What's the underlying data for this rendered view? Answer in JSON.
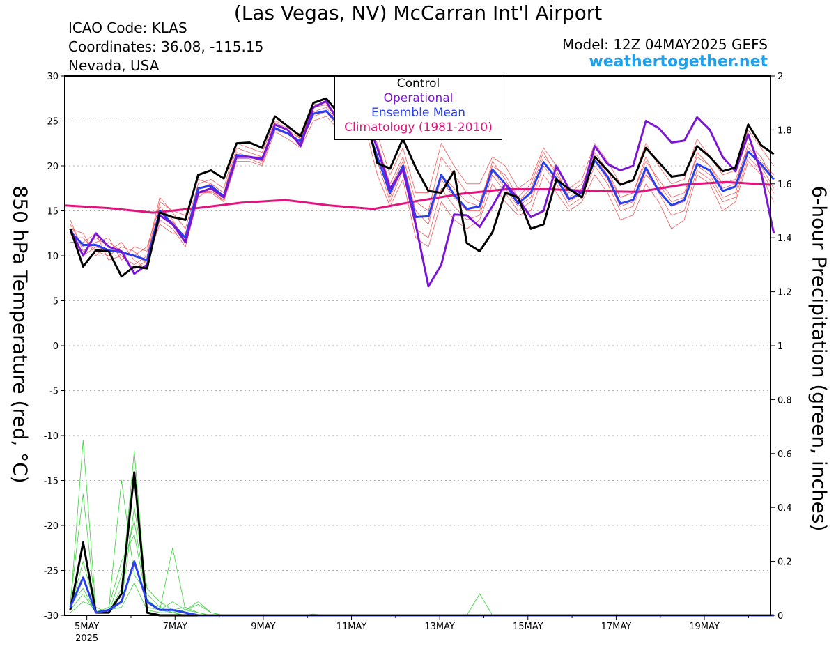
{
  "header": {
    "title": "(Las Vegas, NV) McCarran Int'l Airport",
    "icao": "ICAO Code: KLAS",
    "coordinates": "Coordinates: 36.08, -115.15",
    "region": "Nevada, USA",
    "model": "Model: 12Z 04MAY2025 GEFS",
    "site": "weathertogether.net"
  },
  "colors": {
    "control": "#000000",
    "operational": "#7b16d3",
    "ensemble_mean": "#2840f0",
    "climatology": "#e0147c",
    "members_temp": "#f25a5a",
    "members_precip": "#3ad23a",
    "site": "#1fa2ee"
  },
  "chart_data": {
    "type": "line",
    "title": "(Las Vegas, NV) McCarran Int'l Airport",
    "ylabel": "850 hPa Temperature (red, °C)",
    "y2label": "6-hour Precipitation (green, inches)",
    "ylim": [
      -30,
      30
    ],
    "y2lim": [
      0,
      2
    ],
    "yticks": [
      "30",
      "25",
      "20",
      "15",
      "10",
      "5",
      "0",
      "-5",
      "-10",
      "-15",
      "-20",
      "-25",
      "-30"
    ],
    "y2ticks": [
      "2",
      "1.8",
      "1.6",
      "1.4",
      "1.2",
      "1",
      "0.8",
      "0.6",
      "0.4",
      "0.2",
      "0"
    ],
    "xticks": [
      "5MAY",
      "7MAY",
      "9MAY",
      "11MAY",
      "13MAY",
      "15MAY",
      "17MAY",
      "19MAY"
    ],
    "xtick_year": "2025",
    "x_start_day": 4.5,
    "x_end_day": 20.5,
    "grid": "horizontal dotted",
    "legend": {
      "position": "top-center",
      "entries": [
        {
          "label": "Control",
          "color": "#000000"
        },
        {
          "label": "Operational",
          "color": "#7b16d3"
        },
        {
          "label": "Ensemble Mean",
          "color": "#2840f0"
        },
        {
          "label": "Climatology (1981-2010)",
          "color": "#e0147c"
        }
      ]
    },
    "series": [
      {
        "name": "Control",
        "axis": "left",
        "color": "#000000",
        "width": 3,
        "values": [
          13,
          8.8,
          10.6,
          10.5,
          7.7,
          8.8,
          8.6,
          14.8,
          14.3,
          14,
          19,
          19.5,
          18.6,
          22.5,
          22.6,
          22,
          25.5,
          24.4,
          23.3,
          27,
          27.5,
          25.8,
          26.5,
          26.2,
          20.3,
          19.7,
          23,
          19.8,
          17.2,
          17,
          19.4,
          11.4,
          10.5,
          12.6,
          17,
          16.5,
          13,
          13.5,
          18.5,
          17.4,
          16.5,
          21,
          19.5,
          17.9,
          18.4,
          22,
          20.4,
          18.8,
          19,
          22.2,
          21,
          19.4,
          19.8,
          24.6,
          22.3,
          21.3
        ]
      },
      {
        "name": "Operational",
        "axis": "left",
        "color": "#7b16d3",
        "width": 3,
        "values": [
          13,
          10,
          12.5,
          11,
          10.5,
          8,
          9,
          14.5,
          13.5,
          11.5,
          17,
          17.5,
          16.5,
          21,
          21,
          20.7,
          24.6,
          24,
          22.2,
          26.5,
          27.2,
          24.8,
          26,
          25.6,
          22,
          17.5,
          19.6,
          13.5,
          6.6,
          9,
          14.6,
          14.5,
          13.2,
          15.5,
          18,
          16.4,
          14.3,
          15,
          20,
          17.4,
          17,
          22.2,
          20.2,
          19.5,
          20,
          25,
          24.2,
          22.6,
          22.8,
          25.4,
          24,
          21,
          19.4,
          23.5,
          19.3,
          12.5
        ]
      },
      {
        "name": "Ensemble Mean",
        "axis": "left",
        "color": "#2840f0",
        "width": 3,
        "values": [
          12.7,
          11.2,
          11.2,
          10.6,
          10.4,
          10,
          9.5,
          15,
          13.5,
          12,
          17.5,
          17.8,
          16.6,
          21.2,
          21,
          20.8,
          24.2,
          23.6,
          22.7,
          25.8,
          26.1,
          24.6,
          25.5,
          25.2,
          21,
          17,
          20,
          14.3,
          14.4,
          19,
          16.8,
          15.2,
          15.5,
          19.6,
          18,
          15.8,
          17,
          20.4,
          18.6,
          16.3,
          17,
          20.6,
          18.8,
          15.8,
          16.2,
          19.8,
          17.2,
          15.6,
          16.2,
          20.2,
          19.5,
          17.2,
          17.7,
          21.6,
          20.2,
          18.5
        ]
      },
      {
        "name": "Climatology (1981-2010)",
        "axis": "left",
        "color": "#e0147c",
        "width": 3,
        "x": [
          4.5,
          5.5,
          6.5,
          7.5,
          8.5,
          9.5,
          10.5,
          11.5,
          12.5,
          13.5,
          14.5,
          15.5,
          16.5,
          17.5,
          18.5,
          19.5,
          20.5
        ],
        "values": [
          15.6,
          15.3,
          14.8,
          15.3,
          15.9,
          16.2,
          15.6,
          15.2,
          16.1,
          16.9,
          17.4,
          17.4,
          17.2,
          17.1,
          17.9,
          18.2,
          17.9
        ]
      },
      {
        "name": "Control precipitation",
        "axis": "right",
        "color": "#000000",
        "width": 3,
        "values": [
          0.02,
          0.27,
          0.01,
          0.01,
          0.08,
          0.53,
          0.01,
          0,
          0,
          0,
          0,
          0,
          0,
          0,
          0,
          0,
          0,
          0,
          0,
          0,
          0,
          0,
          0,
          0,
          0,
          0,
          0,
          0,
          0,
          0,
          0,
          0,
          0,
          0,
          0,
          0,
          0,
          0,
          0,
          0,
          0,
          0,
          0,
          0,
          0,
          0,
          0,
          0,
          0,
          0,
          0,
          0,
          0,
          0,
          0,
          0
        ]
      },
      {
        "name": "Ensemble mean precipitation",
        "axis": "right",
        "color": "#2840f0",
        "width": 3,
        "values": [
          0.03,
          0.14,
          0.01,
          0.02,
          0.05,
          0.2,
          0.05,
          0.02,
          0.02,
          0.01,
          0,
          0,
          0,
          0,
          0,
          0,
          0,
          0,
          0,
          0,
          0,
          0,
          0,
          0,
          0,
          0,
          0,
          0,
          0,
          0,
          0,
          0,
          0,
          0,
          0,
          0,
          0,
          0,
          0,
          0,
          0,
          0,
          0,
          0,
          0,
          0,
          0,
          0,
          0,
          0,
          0,
          0,
          0,
          0,
          0,
          0
        ]
      }
    ],
    "members_temp": [
      [
        13.5,
        11,
        12,
        11,
        10,
        9,
        10,
        16,
        15,
        14.5,
        18.5,
        18,
        17,
        22,
        21.5,
        21,
        24.8,
        24.2,
        23.5,
        26.8,
        27,
        25.4,
        26,
        25.5,
        22.5,
        18,
        21,
        16,
        15,
        21,
        19,
        17,
        16,
        20,
        19,
        16.5,
        18,
        21.5,
        19,
        17,
        18,
        21,
        19,
        16.5,
        17,
        21,
        18,
        16,
        16.5,
        21.5,
        20,
        18,
        18.5,
        22,
        20.5,
        19
      ],
      [
        12,
        12,
        10.5,
        10,
        11,
        10.5,
        9,
        14,
        13,
        11,
        16.5,
        17.5,
        16,
        20.5,
        20.5,
        20,
        23.8,
        23,
        22,
        25,
        25.5,
        24,
        25,
        24.6,
        19,
        15.5,
        18.5,
        12,
        11,
        16,
        14,
        13,
        14,
        18,
        16,
        14.5,
        15,
        19,
        17,
        15,
        16,
        19,
        17,
        14,
        14.5,
        18,
        16,
        13,
        14,
        19,
        18,
        15,
        16,
        20.5,
        19,
        16
      ],
      [
        14,
        10.5,
        11.5,
        12,
        9.5,
        11,
        10.5,
        16.5,
        14.8,
        13,
        18,
        18.5,
        17.5,
        22.5,
        22,
        21.5,
        25,
        24.5,
        23,
        26.5,
        26.8,
        25,
        26.2,
        25.8,
        23.5,
        19,
        22,
        17,
        17,
        22.5,
        20,
        18,
        18,
        21,
        20,
        17.5,
        18.5,
        22,
        20,
        17.5,
        18.5,
        22.5,
        20.5,
        18,
        18.5,
        22.5,
        20,
        18,
        18.5,
        23,
        21,
        19,
        19.5,
        24,
        22,
        20
      ],
      [
        11.5,
        11.5,
        12.5,
        9.5,
        10,
        8.5,
        9.5,
        13.5,
        12.5,
        12.5,
        17,
        17,
        16,
        21,
        21,
        21,
        24,
        23.5,
        22.5,
        25.5,
        26,
        24.2,
        25.2,
        25,
        20.5,
        16,
        19.5,
        13,
        12,
        17.5,
        15.5,
        14,
        14.5,
        19,
        17,
        15,
        16,
        20,
        18,
        15.5,
        16.5,
        20,
        18,
        15,
        15.5,
        19.5,
        17,
        14.5,
        15,
        19.5,
        18.5,
        16,
        16.5,
        21,
        19.5,
        17
      ],
      [
        13,
        12.5,
        10,
        11.5,
        10.5,
        10,
        11,
        15.5,
        14,
        11.5,
        17.5,
        18,
        17,
        21.5,
        21,
        20.5,
        24.5,
        24,
        23,
        26,
        26.5,
        24.8,
        25.8,
        25.4,
        22,
        17.5,
        20.5,
        15,
        13.5,
        19,
        17.5,
        16,
        15.5,
        20.5,
        18.5,
        16,
        17.5,
        21,
        19.5,
        16.5,
        17.5,
        21.5,
        19.5,
        16.5,
        17,
        20.5,
        18.5,
        16.5,
        17,
        21,
        20,
        17.5,
        18,
        22.5,
        21,
        18.5
      ],
      [
        12.5,
        10,
        11,
        10.5,
        11.5,
        9.5,
        8.5,
        14.5,
        13.8,
        12,
        17,
        17.2,
        16.2,
        20.8,
        20.8,
        20.2,
        24.2,
        23.6,
        22.6,
        25.8,
        26,
        24.5,
        25.4,
        25,
        21,
        16.5,
        19.8,
        14,
        14,
        18.5,
        16.5,
        15,
        15,
        19.5,
        17.5,
        15.5,
        16.5,
        20.5,
        18.5,
        16,
        17,
        20.5,
        18.5,
        15.5,
        16,
        19,
        17.5,
        15.5,
        16,
        20,
        19,
        16.5,
        17,
        21.5,
        20,
        17.5
      ]
    ],
    "members_precip": [
      [
        0.03,
        0.65,
        0.02,
        0.01,
        0.1,
        0.61,
        0.03,
        0.02,
        0.01,
        0,
        0,
        0,
        0,
        0,
        0,
        0,
        0,
        0,
        0,
        0,
        0,
        0,
        0,
        0,
        0,
        0,
        0,
        0,
        0,
        0,
        0,
        0,
        0,
        0,
        0,
        0,
        0,
        0,
        0,
        0,
        0,
        0,
        0,
        0,
        0,
        0,
        0,
        0,
        0,
        0,
        0,
        0,
        0,
        0,
        0,
        0
      ],
      [
        0.05,
        0.45,
        0.01,
        0.03,
        0.2,
        0.3,
        0.05,
        0.02,
        0.25,
        0.02,
        0.01,
        0,
        0,
        0,
        0,
        0,
        0,
        0,
        0,
        0,
        0,
        0,
        0,
        0,
        0,
        0,
        0,
        0,
        0,
        0,
        0,
        0,
        0,
        0,
        0,
        0,
        0,
        0,
        0,
        0,
        0,
        0,
        0,
        0,
        0,
        0,
        0,
        0,
        0,
        0,
        0,
        0,
        0,
        0,
        0,
        0
      ],
      [
        0.02,
        0.2,
        0.02,
        0.01,
        0.05,
        0.4,
        0.1,
        0.05,
        0.02,
        0.03,
        0.01,
        0,
        0,
        0,
        0,
        0,
        0,
        0,
        0,
        0,
        0,
        0,
        0,
        0,
        0,
        0,
        0,
        0,
        0,
        0,
        0,
        0,
        0,
        0,
        0,
        0,
        0,
        0,
        0,
        0,
        0,
        0,
        0,
        0,
        0,
        0,
        0,
        0,
        0,
        0,
        0,
        0,
        0,
        0,
        0,
        0
      ],
      [
        0.04,
        0.1,
        0.01,
        0.02,
        0.5,
        0.15,
        0.08,
        0.03,
        0.01,
        0.02,
        0.04,
        0.01,
        0,
        0,
        0,
        0,
        0,
        0,
        0,
        0,
        0,
        0,
        0,
        0,
        0,
        0,
        0,
        0,
        0,
        0,
        0,
        0,
        0,
        0,
        0,
        0,
        0,
        0,
        0,
        0,
        0,
        0,
        0,
        0,
        0,
        0,
        0,
        0,
        0,
        0,
        0,
        0,
        0,
        0,
        0,
        0
      ],
      [
        0.01,
        0.05,
        0.03,
        0.01,
        0.15,
        0.35,
        0.06,
        0.02,
        0.05,
        0.02,
        0.05,
        0.01,
        0,
        0,
        0,
        0,
        0,
        0,
        0,
        0.005,
        0,
        0,
        0,
        0,
        0,
        0,
        0,
        0,
        0,
        0,
        0,
        0,
        0,
        0,
        0,
        0,
        0,
        0,
        0,
        0,
        0,
        0,
        0,
        0,
        0,
        0,
        0,
        0,
        0,
        0,
        0,
        0,
        0,
        0,
        0,
        0
      ],
      [
        0.02,
        0.08,
        0.01,
        0.02,
        0.03,
        0.12,
        0.02,
        0.01,
        0.01,
        0,
        0,
        0,
        0,
        0,
        0,
        0,
        0,
        0,
        0,
        0,
        0,
        0,
        0,
        0,
        0,
        0,
        0,
        0,
        0,
        0,
        0,
        0,
        0.08,
        0,
        0,
        0,
        0,
        0,
        0,
        0,
        0,
        0,
        0,
        0,
        0,
        0,
        0,
        0,
        0,
        0,
        0,
        0,
        0,
        0,
        0,
        0
      ]
    ]
  }
}
